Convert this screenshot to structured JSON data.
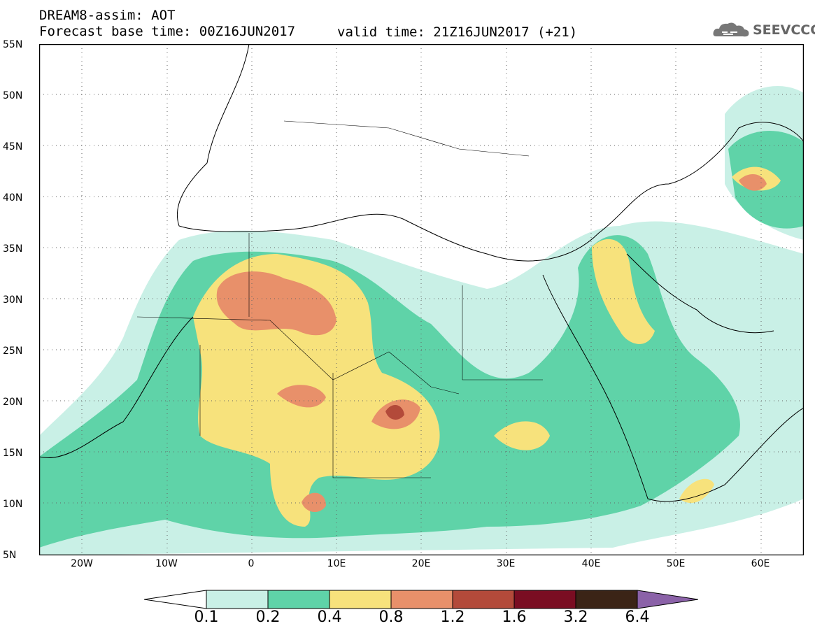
{
  "header": {
    "line1": "DREAM8-assim: AOT",
    "line2": "Forecast base time: 00Z16JUN2017",
    "valid": "valid time: 21Z16JUN2017 (+21)",
    "logo_text": "SEEVCCC"
  },
  "map": {
    "latitude_labels": [
      "55N",
      "50N",
      "45N",
      "40N",
      "35N",
      "30N",
      "25N",
      "20N",
      "15N",
      "10N",
      "5N"
    ],
    "longitude_labels": [
      "20W",
      "10W",
      "0",
      "10E",
      "20E",
      "30E",
      "40E",
      "50E",
      "60E"
    ]
  },
  "colorbar": {
    "labels": [
      "0.1",
      "0.2",
      "0.4",
      "0.8",
      "1.2",
      "1.6",
      "3.2",
      "6.4"
    ],
    "colors": [
      "#ffffff",
      "#c9f0e6",
      "#5fd3a8",
      "#f7e27c",
      "#e8906a",
      "#b34a3a",
      "#7a0d22",
      "#3b2416",
      "#8b62a8"
    ]
  }
}
